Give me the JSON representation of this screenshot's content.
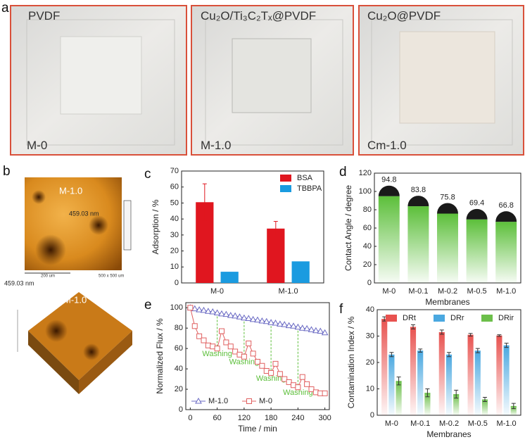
{
  "panels": {
    "a": {
      "letter": "a",
      "photos": [
        {
          "title": "PVDF",
          "label": "M-0"
        },
        {
          "title": "Cu₂O/Ti₃C₂Tₓ@PVDF",
          "label": "M-1.0"
        },
        {
          "title": "Cu₂O@PVDF",
          "label": "Cm-1.0"
        }
      ]
    },
    "b": {
      "letter": "b",
      "sample": "M-1.0",
      "height": "459.03 nm",
      "scale": "200 um",
      "size": "500 x 500 um",
      "sample_3d": "M-1.0",
      "height_3d": "459.03 nm"
    }
  },
  "chart_data": [
    {
      "type": "bar",
      "panel": "c",
      "ylabel": "Adsorption / %",
      "categories": [
        "M-0",
        "M-1.0"
      ],
      "series": [
        {
          "name": "BSA",
          "color": "#e0161f",
          "values": [
            50.5,
            34
          ],
          "errors": [
            11.5,
            4.5
          ]
        },
        {
          "name": "TBBPA",
          "color": "#1a9be0",
          "values": [
            7,
            13.5
          ]
        }
      ],
      "ylim": [
        0,
        70
      ],
      "yticks": [
        0,
        10,
        20,
        30,
        40,
        50,
        60,
        70
      ],
      "legend": "upper right"
    },
    {
      "type": "bar",
      "panel": "d",
      "xlabel": "Membranes",
      "ylabel": "Contact Angle / degree",
      "categories": [
        "M-0",
        "M-0.1",
        "M-0.2",
        "M-0.5",
        "M-1.0"
      ],
      "series": [
        {
          "color": "#5cbf3a",
          "values": [
            94.8,
            83.8,
            75.8,
            69.4,
            66.8
          ]
        }
      ],
      "ylim": [
        0,
        120
      ],
      "yticks": [
        0,
        20,
        40,
        60,
        80,
        100,
        120
      ],
      "gradient": true,
      "caps": true,
      "value_labels_shown": true
    },
    {
      "type": "line",
      "panel": "e",
      "xlabel": "Time / min",
      "ylabel": "Normalized Flux / %",
      "x": [
        0,
        10,
        20,
        30,
        40,
        50,
        60,
        70,
        80,
        90,
        100,
        110,
        120,
        130,
        140,
        150,
        160,
        170,
        180,
        190,
        200,
        210,
        220,
        230,
        240,
        250,
        260,
        270,
        280,
        290,
        300
      ],
      "series": [
        {
          "name": "M-1.0",
          "color": "#6b6bc4",
          "marker": "triangle",
          "values": [
            100,
            99,
            98,
            97.5,
            96.5,
            96,
            95,
            94,
            93.5,
            92.5,
            92,
            91,
            90,
            89.5,
            88.5,
            88,
            87,
            86.5,
            85.5,
            85,
            84,
            83.5,
            82.5,
            82,
            81,
            80,
            79.5,
            78.5,
            77.5,
            77,
            75.5
          ]
        },
        {
          "name": "M-0",
          "color": "#e06060",
          "marker": "square",
          "values": [
            100,
            82,
            72,
            68,
            63,
            62,
            60,
            77,
            66,
            62,
            57,
            54,
            52,
            65,
            55,
            47,
            43,
            38,
            36,
            45,
            35,
            30,
            27,
            24,
            22,
            32,
            25,
            20,
            17,
            16,
            16
          ]
        }
      ],
      "annotations": [
        {
          "text": "Washing",
          "x": 60
        },
        {
          "text": "Washing",
          "x": 120
        },
        {
          "text": "Washing",
          "x": 180
        },
        {
          "text": "Washing",
          "x": 240
        }
      ],
      "xlim": [
        -10,
        310
      ],
      "xticks": [
        0,
        60,
        120,
        180,
        240,
        300
      ],
      "ylim": [
        0,
        105
      ],
      "yticks": [
        0,
        20,
        40,
        60,
        80,
        100
      ],
      "legend": "lower left"
    },
    {
      "type": "bar",
      "panel": "f",
      "xlabel": "Membranes",
      "ylabel": "Contamination Index / %",
      "categories": [
        "M-0",
        "M-0.1",
        "M-0.2",
        "M-0.5",
        "M-1.0"
      ],
      "series": [
        {
          "name": "DRt",
          "color": "#e8524f",
          "values": [
            36.5,
            33.5,
            31.5,
            30.5,
            30.2
          ],
          "errors": [
            0.8,
            0.8,
            0.8,
            0.5,
            0.3
          ]
        },
        {
          "name": "DRr",
          "color": "#4aa8e0",
          "values": [
            23,
            24.5,
            23,
            24.5,
            26.5
          ],
          "errors": [
            0.8,
            0.6,
            0.8,
            0.8,
            0.8
          ]
        },
        {
          "name": "DRir",
          "color": "#6cbf4a",
          "values": [
            13,
            8.5,
            8,
            6,
            3.5
          ],
          "errors": [
            1.5,
            1.5,
            1.5,
            0.8,
            1.0
          ]
        }
      ],
      "ylim": [
        0,
        40
      ],
      "yticks": [
        0,
        10,
        20,
        30,
        40
      ],
      "gradient": true,
      "legend": "top"
    }
  ]
}
